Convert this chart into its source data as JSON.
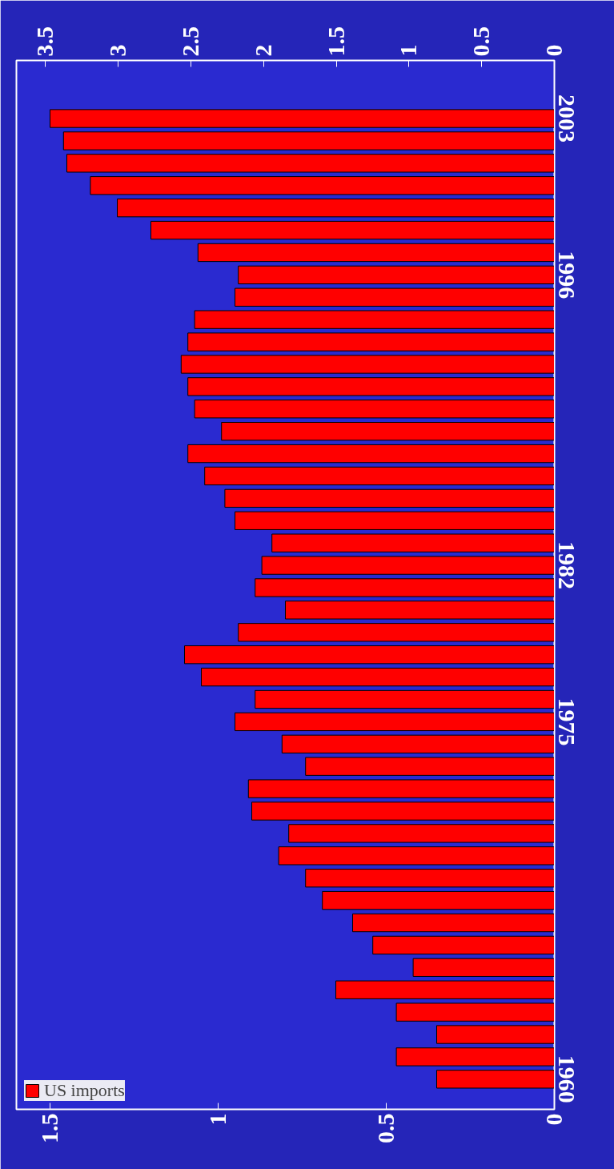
{
  "chart_data": {
    "type": "bar",
    "orientation": "horizontal",
    "categories": [
      "2003",
      null,
      null,
      null,
      null,
      null,
      null,
      "1996",
      null,
      null,
      null,
      null,
      null,
      null,
      null,
      null,
      null,
      null,
      null,
      null,
      "1982",
      null,
      null,
      null,
      null,
      null,
      null,
      "1975",
      null,
      null,
      null,
      null,
      null,
      null,
      null,
      null,
      null,
      null,
      null,
      null,
      null,
      null,
      null,
      "1960"
    ],
    "series": [
      {
        "name": "US imports",
        "color": "#ff0000",
        "values": [
          1.5,
          1.46,
          1.45,
          1.38,
          1.3,
          1.2,
          1.06,
          0.94,
          0.95,
          1.07,
          1.09,
          1.11,
          1.09,
          1.07,
          0.99,
          1.09,
          1.04,
          0.98,
          0.95,
          0.84,
          0.87,
          0.89,
          0.8,
          0.94,
          1.1,
          1.05,
          0.89,
          0.95,
          0.81,
          0.74,
          0.91,
          0.9,
          0.79,
          0.82,
          0.74,
          0.69,
          0.6,
          0.54,
          0.42,
          0.65,
          0.47,
          0.35,
          0.47,
          0.35
        ]
      }
    ],
    "xlim": [
      1.6,
      0
    ],
    "xticks": [
      0,
      0.5,
      1,
      1.5
    ],
    "x2lim": [
      3.7,
      0
    ],
    "x2ticks": [
      0,
      0.5,
      1,
      1.5,
      2,
      2.5,
      3,
      3.5
    ],
    "grid": false,
    "legend": "bottom left"
  }
}
